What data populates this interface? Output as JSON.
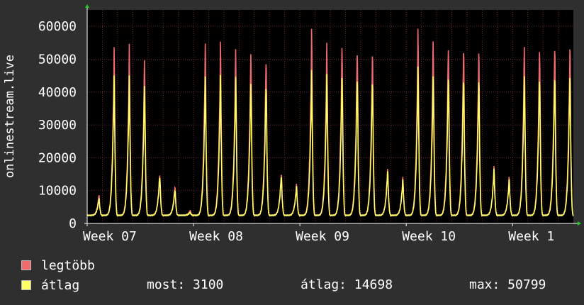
{
  "chart_data": {
    "type": "area",
    "ylabel": "onlinestream.live",
    "ylim": [
      0,
      65000
    ],
    "y_ticks": [
      0,
      10000,
      20000,
      30000,
      40000,
      50000,
      60000
    ],
    "x_week_labels": [
      "Week 07",
      "Week 08",
      "Week 09",
      "Week 10",
      "Week 1"
    ],
    "grid": true,
    "colors": {
      "plot_bg": "#000000",
      "grid": "#6b2a2a",
      "legtobb": "#f06b6b",
      "atlag": "#ffff66"
    },
    "day_peaks": [
      {
        "day": 0,
        "max": 9000,
        "avg": 8000
      },
      {
        "day": 1,
        "max": 55500,
        "avg": 47500
      },
      {
        "day": 2,
        "max": 56500,
        "avg": 47500
      },
      {
        "day": 3,
        "max": 53000,
        "avg": 45500
      },
      {
        "day": 4,
        "max": 16000,
        "avg": 15500
      },
      {
        "day": 5,
        "max": 12000,
        "avg": 11000
      },
      {
        "day": 6,
        "max": 4000,
        "avg": 3500
      },
      {
        "day": 7,
        "max": 57000,
        "avg": 47500
      },
      {
        "day": 8,
        "max": 57000,
        "avg": 47500
      },
      {
        "day": 9,
        "max": 56000,
        "avg": 48000
      },
      {
        "day": 10,
        "max": 56500,
        "avg": 47500
      },
      {
        "day": 11,
        "max": 54000,
        "avg": 46500
      },
      {
        "day": 12,
        "max": 16000,
        "avg": 15500
      },
      {
        "day": 13,
        "max": 12500,
        "avg": 12000
      },
      {
        "day": 14,
        "max": 61000,
        "avg": 49000
      },
      {
        "day": 15,
        "max": 57500,
        "avg": 48500
      },
      {
        "day": 16,
        "max": 58000,
        "avg": 49000
      },
      {
        "day": 17,
        "max": 57000,
        "avg": 49000
      },
      {
        "day": 18,
        "max": 56000,
        "avg": 47500
      },
      {
        "day": 19,
        "max": 17500,
        "avg": 17000
      },
      {
        "day": 20,
        "max": 14500,
        "avg": 14000
      },
      {
        "day": 21,
        "max": 61500,
        "avg": 50500
      },
      {
        "day": 22,
        "max": 59500,
        "avg": 49000
      },
      {
        "day": 23,
        "max": 58500,
        "avg": 49500
      },
      {
        "day": 24,
        "max": 57500,
        "avg": 48500
      },
      {
        "day": 25,
        "max": 55500,
        "avg": 47000
      },
      {
        "day": 26,
        "max": 18000,
        "avg": 17500
      },
      {
        "day": 27,
        "max": 14500,
        "avg": 14000
      },
      {
        "day": 28,
        "max": 57000,
        "avg": 48500
      },
      {
        "day": 29,
        "max": 57500,
        "avg": 48500
      },
      {
        "day": 30,
        "max": 58500,
        "avg": 49500
      },
      {
        "day": 31,
        "max": 57500,
        "avg": 49000
      },
      {
        "day": 32,
        "max": 3500,
        "avg": 3100
      }
    ],
    "baseline": 2500
  },
  "legend": {
    "max_label": "legtöbb",
    "avg_label": "átlag"
  },
  "stats": {
    "most": "most: 3100",
    "atlag": "átlag: 14698",
    "max": "max: 50799"
  }
}
